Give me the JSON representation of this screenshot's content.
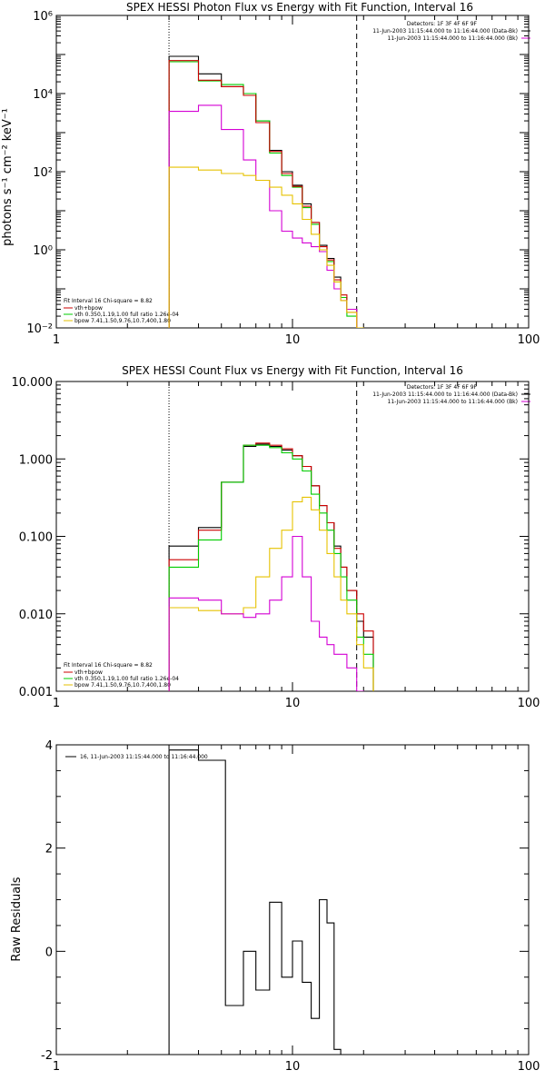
{
  "colors": {
    "data": "#000000",
    "total": "#cc0000",
    "vth": "#00cc00",
    "bpow": "#e6c200",
    "bk": "#d400d4"
  },
  "chart_data": [
    {
      "type": "line",
      "title": "SPEX HESSI Photon Flux vs Energy with Fit Function, Interval 16",
      "ylabel": "photons s⁻¹ cm⁻² keV⁻¹",
      "xlabel": "",
      "xscale": "log",
      "yscale": "log",
      "xlim": [
        1,
        100
      ],
      "ylim": [
        0.01,
        1000000
      ],
      "xticks": [
        {
          "v": 1,
          "label": "1"
        },
        {
          "v": 10,
          "label": "10"
        },
        {
          "v": 100,
          "label": "100"
        }
      ],
      "yticks": [
        {
          "v": 0.01,
          "label": "10⁻²"
        },
        {
          "v": 1,
          "label": "10⁰"
        },
        {
          "v": 100,
          "label": "10²"
        },
        {
          "v": 10000,
          "label": "10⁴"
        },
        {
          "v": 1000000,
          "label": "10⁶"
        }
      ],
      "vlines": [
        {
          "x": 3.0,
          "style": "dotted"
        },
        {
          "x": 18.7,
          "style": "dashed"
        }
      ],
      "header_lines": [
        "Detectors: 1F 3F 4F 6F 9F",
        "11-Jun-2003 11:15:44.000 to 11:16:44.000 (Data-Bk)",
        "11-Jun-2003 11:15:44.000 to 11:16:44.000 (Bk)"
      ],
      "header_colors": [
        "none",
        "data",
        "bk"
      ],
      "footer_lines": [
        "Fit Interval 16   Chi-square = 8.82",
        "vth+bpow",
        "vth 0.350,1.19,1.00  full ratio 1.26e-04",
        "bpow 7.41,1.50,9.76,10.7,400,1.80"
      ],
      "footer_colors": [
        "none",
        "total",
        "vth",
        "bpow"
      ],
      "edges": [
        3.0,
        4.0,
        5.0,
        6.2,
        7.0,
        8.0,
        9.0,
        10.0,
        11.0,
        12.0,
        13.0,
        14.0,
        15.0,
        16.0,
        17.0,
        18.7,
        20.0,
        22.0
      ],
      "series": [
        {
          "key": "data",
          "values": [
            90000,
            32000,
            15000,
            10000,
            2000,
            350,
            100,
            45,
            15,
            5,
            1.3,
            0.6,
            0.2,
            0.06,
            0.03,
            0.01,
            0.005
          ]
        },
        {
          "key": "vth",
          "values": [
            65000,
            21000,
            17000,
            10000,
            2000,
            300,
            80,
            40,
            12,
            4.5,
            1.0,
            0.5,
            0.15,
            0.06,
            0.02,
            0.008,
            0.004
          ]
        },
        {
          "key": "total",
          "values": [
            70000,
            22000,
            15000,
            9000,
            1800,
            330,
            90,
            42,
            13,
            5,
            1.2,
            0.55,
            0.17,
            0.07,
            0.025,
            0.009,
            0.005
          ]
        },
        {
          "key": "bk",
          "values": [
            3500,
            5000,
            1200,
            200,
            60,
            10,
            3,
            2,
            1.5,
            1.2,
            0.9,
            0.3,
            0.1,
            0.05,
            0.03,
            0.01,
            0.005
          ]
        },
        {
          "key": "bpow",
          "values": [
            130,
            110,
            90,
            80,
            60,
            40,
            25,
            15,
            6,
            2.5,
            1.0,
            0.4,
            0.15,
            0.05,
            0.025,
            0.01,
            0.005
          ]
        }
      ]
    },
    {
      "type": "line",
      "title": "SPEX HESSI Count Flux vs Energy with Fit Function, Interval 16",
      "ylabel": "",
      "xlabel": "",
      "xscale": "log",
      "yscale": "log",
      "xlim": [
        1,
        100
      ],
      "ylim": [
        0.001,
        10
      ],
      "xticks": [
        {
          "v": 1,
          "label": "1"
        },
        {
          "v": 10,
          "label": "10"
        },
        {
          "v": 100,
          "label": "100"
        }
      ],
      "yticks": [
        {
          "v": 0.001,
          "label": "0.001"
        },
        {
          "v": 0.01,
          "label": "0.010"
        },
        {
          "v": 0.1,
          "label": "0.100"
        },
        {
          "v": 1,
          "label": "1.000"
        },
        {
          "v": 10,
          "label": "10.000"
        }
      ],
      "vlines": [
        {
          "x": 3.0,
          "style": "dotted"
        },
        {
          "x": 18.7,
          "style": "dashed"
        }
      ],
      "header_lines": [
        "Detectors: 1F 3F 4F 6F 9F",
        "11-Jun-2003 11:15:44.000 to 11:16:44.000 (Data-Bk)",
        "11-Jun-2003 11:15:44.000 to 11:16:44.000 (Bk)"
      ],
      "header_colors": [
        "none",
        "data",
        "bk"
      ],
      "footer_lines": [
        "Fit Interval 16   Chi-square = 8.82",
        "vth+bpow",
        "vth 0.350,1.19,1.00  full ratio 1.26e-04",
        "bpow 7.41,1.50,9.76,10.7,400,1.80"
      ],
      "footer_colors": [
        "none",
        "total",
        "vth",
        "bpow"
      ],
      "edges": [
        3.0,
        4.0,
        5.0,
        6.2,
        7.0,
        8.0,
        9.0,
        10.0,
        11.0,
        12.0,
        13.0,
        14.0,
        15.0,
        16.0,
        17.0,
        18.7,
        20.0,
        22.0
      ],
      "series": [
        {
          "key": "data",
          "values": [
            0.075,
            0.13,
            0.5,
            1.45,
            1.55,
            1.45,
            1.3,
            1.1,
            0.8,
            0.45,
            0.25,
            0.15,
            0.075,
            0.04,
            0.02,
            0.008,
            0.005
          ]
        },
        {
          "key": "total",
          "values": [
            0.05,
            0.12,
            0.5,
            1.5,
            1.6,
            1.5,
            1.35,
            1.1,
            0.8,
            0.45,
            0.25,
            0.15,
            0.07,
            0.04,
            0.02,
            0.01,
            0.006
          ]
        },
        {
          "key": "vth",
          "values": [
            0.04,
            0.09,
            0.5,
            1.5,
            1.5,
            1.4,
            1.2,
            1.0,
            0.7,
            0.35,
            0.2,
            0.12,
            0.06,
            0.03,
            0.015,
            0.005,
            0.003
          ]
        },
        {
          "key": "bpow",
          "values": [
            0.012,
            0.011,
            0.01,
            0.012,
            0.03,
            0.07,
            0.12,
            0.28,
            0.32,
            0.22,
            0.12,
            0.06,
            0.03,
            0.015,
            0.01,
            0.004,
            0.002
          ]
        },
        {
          "key": "bk",
          "values": [
            0.016,
            0.015,
            0.01,
            0.009,
            0.01,
            0.015,
            0.03,
            0.1,
            0.03,
            0.008,
            0.005,
            0.004,
            0.003,
            0.003,
            0.002,
            0.001,
            0.0008
          ]
        }
      ]
    },
    {
      "type": "line",
      "title": "",
      "ylabel": "Raw Residuals",
      "xlabel": "",
      "xscale": "log",
      "yscale": "linear",
      "xlim": [
        1,
        100
      ],
      "ylim": [
        -2,
        4
      ],
      "xticks": [
        {
          "v": 1,
          "label": "1"
        },
        {
          "v": 10,
          "label": "10"
        },
        {
          "v": 100,
          "label": "100"
        }
      ],
      "yticks": [
        {
          "v": -2,
          "label": "-2"
        },
        {
          "v": 0,
          "label": "0"
        },
        {
          "v": 2,
          "label": "2"
        },
        {
          "v": 4,
          "label": "4"
        }
      ],
      "vlines": [],
      "legend_lines": [
        "16, 11-Jun-2003 11:15:44.000 to 11:16:44.000"
      ],
      "edges": [
        3.0,
        4.0,
        5.2,
        6.2,
        7.0,
        8.0,
        9.0,
        10.0,
        11.0,
        12.0,
        13.0,
        14.0,
        15.0,
        16.0
      ],
      "series": [
        {
          "key": "data",
          "values": [
            3.9,
            3.7,
            -1.05,
            0.0,
            -0.75,
            0.95,
            -0.5,
            0.2,
            -0.6,
            -1.3,
            1.0,
            0.55,
            -1.9
          ]
        }
      ]
    }
  ]
}
